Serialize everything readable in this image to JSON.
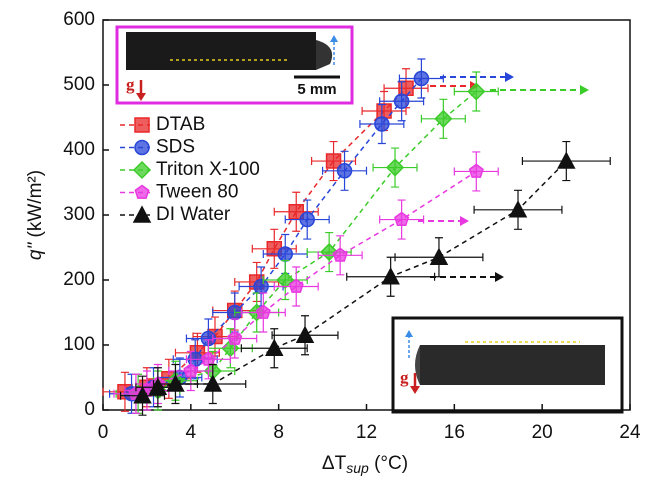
{
  "chart_data": {
    "type": "scatter",
    "ylabel": {
      "main": "q\"",
      "unit": " (kW/m²)"
    },
    "xlabel": {
      "main": "ΔT",
      "sub": "sup",
      "unit": " (°C)"
    },
    "xlim": [
      0,
      24
    ],
    "xticks": [
      0,
      4,
      8,
      12,
      16,
      20,
      24
    ],
    "ylim": [
      0,
      600
    ],
    "yticks": [
      0,
      100,
      200,
      300,
      400,
      500,
      600
    ],
    "legend": "upper left",
    "annotations": [
      "5 mm",
      "g",
      "g"
    ],
    "series": [
      {
        "name": "DTAB",
        "color": "#e8282a",
        "marker": "square",
        "x": [
          1.0,
          2.0,
          3.0,
          4.3,
          5.1,
          6.0,
          7.0,
          7.8,
          8.8,
          10.5,
          12.8,
          13.8
        ],
        "values": [
          28,
          35,
          48,
          88,
          113,
          153,
          197,
          248,
          305,
          383,
          460,
          495
        ],
        "xerr": 1,
        "yerr": 30
      },
      {
        "name": "SDS",
        "color": "#2846d8",
        "marker": "circle",
        "x": [
          1.3,
          2.3,
          3.5,
          4.2,
          4.8,
          6.0,
          7.2,
          8.3,
          9.3,
          11.0,
          12.7,
          13.6,
          14.5
        ],
        "values": [
          25,
          35,
          50,
          78,
          110,
          150,
          190,
          240,
          293,
          368,
          440,
          475,
          510
        ],
        "xerr": 1,
        "yerr": 30
      },
      {
        "name": "Triton X-100",
        "color": "#3ccc2a",
        "marker": "diamond",
        "x": [
          1.6,
          2.5,
          3.3,
          5.0,
          5.8,
          7.0,
          8.3,
          10.3,
          13.3,
          15.5,
          17.0
        ],
        "values": [
          25,
          30,
          45,
          60,
          95,
          150,
          200,
          243,
          373,
          448,
          490
        ],
        "xerr": 1,
        "yerr": 30
      },
      {
        "name": "Tween 80",
        "color": "#e838e0",
        "marker": "pentagon",
        "x": [
          1.5,
          2.0,
          2.5,
          4.0,
          4.8,
          6.0,
          7.3,
          8.8,
          10.8,
          13.6,
          17.0
        ],
        "values": [
          25,
          30,
          40,
          60,
          78,
          110,
          150,
          190,
          238,
          293,
          367
        ],
        "xerr": 1,
        "yerr": 30
      },
      {
        "name": "DI Water",
        "color": "#111111",
        "marker": "triangle",
        "x": [
          1.8,
          2.5,
          3.3,
          5.0,
          7.8,
          9.2,
          13.1,
          15.3,
          18.9,
          21.1
        ],
        "values": [
          22,
          35,
          40,
          40,
          95,
          115,
          205,
          235,
          308,
          383
        ],
        "xerr": [
          1,
          1,
          1,
          1.5,
          1.5,
          1.5,
          2,
          2,
          2,
          2
        ],
        "yerr": 30
      }
    ]
  }
}
